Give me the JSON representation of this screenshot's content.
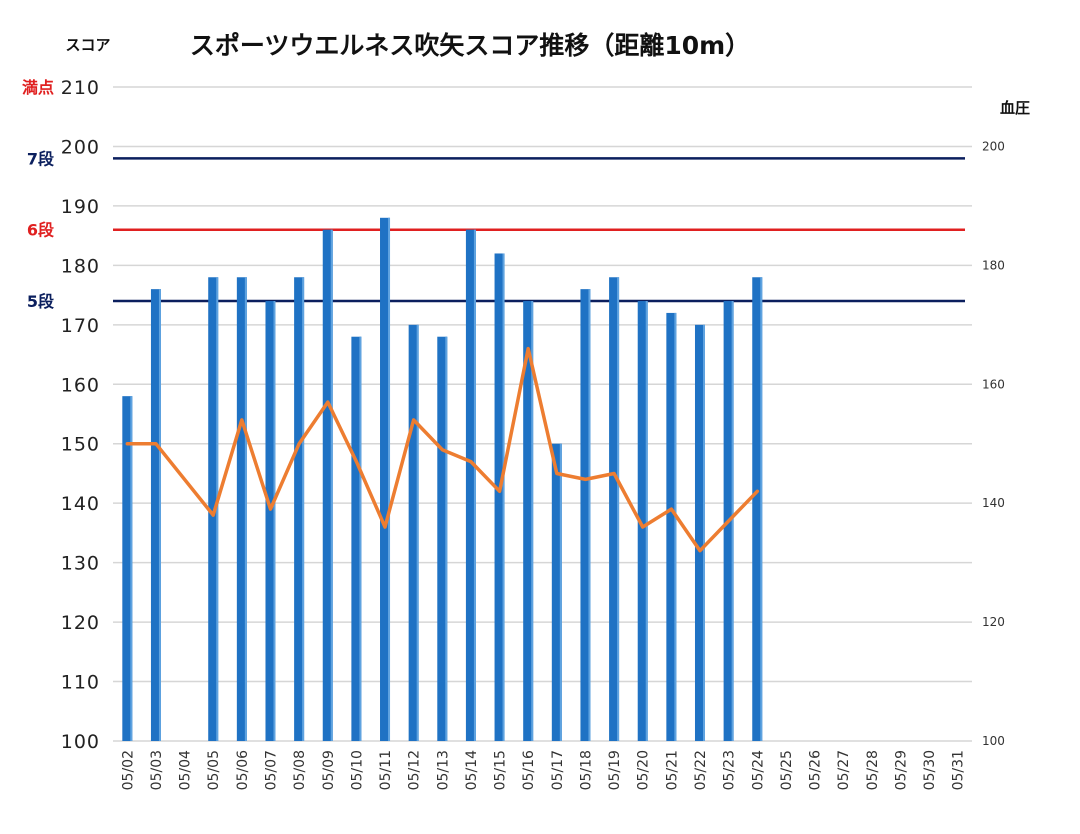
{
  "chart_data": {
    "type": "bar",
    "title": "スポーツウエルネス吹矢スコア推移（距離10m）",
    "ylabel": "スコア",
    "y2label": "血圧",
    "ylim": [
      100,
      210
    ],
    "y2lim": [
      100,
      210
    ],
    "yticks": [
      "100",
      "110",
      "120",
      "130",
      "140",
      "150",
      "160",
      "170",
      "180",
      "190",
      "200",
      "210"
    ],
    "y2ticks": [
      "100",
      "120",
      "140",
      "160",
      "180",
      "200"
    ],
    "grid": true,
    "categories": [
      "05/02",
      "05/03",
      "05/04",
      "05/05",
      "05/06",
      "05/07",
      "05/08",
      "05/09",
      "05/10",
      "05/11",
      "05/12",
      "05/13",
      "05/14",
      "05/15",
      "05/16",
      "05/17",
      "05/18",
      "05/19",
      "05/20",
      "05/21",
      "05/22",
      "05/23",
      "05/24",
      "05/25",
      "05/26",
      "05/27",
      "05/28",
      "05/29",
      "05/30",
      "05/31"
    ],
    "series": [
      {
        "type": "bar",
        "axis": "left",
        "color": "#1f72c4",
        "values": [
          158,
          176,
          null,
          178,
          178,
          174,
          178,
          186,
          168,
          188,
          170,
          168,
          186,
          182,
          174,
          150,
          176,
          178,
          174,
          172,
          170,
          174,
          178,
          null,
          null,
          null,
          null,
          null,
          null,
          null
        ]
      },
      {
        "type": "line",
        "axis": "right",
        "color": "#ed7d31",
        "values": [
          150,
          150,
          null,
          138,
          154,
          139,
          150,
          157,
          147,
          136,
          154,
          149,
          147,
          142,
          166,
          145,
          144,
          145,
          136,
          139,
          132,
          137,
          142,
          null,
          null,
          null,
          null,
          null,
          null,
          null
        ]
      }
    ],
    "reference_lines": [
      {
        "label": "満点",
        "value": 210,
        "color": "#e02020",
        "line": false
      },
      {
        "label": "7段",
        "value": 198,
        "color": "#0b1f5e",
        "line": true
      },
      {
        "label": "6段",
        "value": 186,
        "color": "#e02020",
        "line": true
      },
      {
        "label": "5段",
        "value": 174,
        "color": "#0b1f5e",
        "line": true
      }
    ]
  }
}
